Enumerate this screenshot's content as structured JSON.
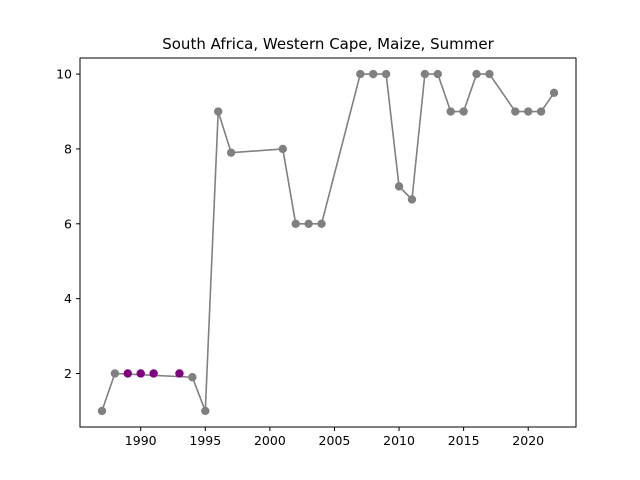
{
  "chart_data": {
    "type": "line",
    "title": "South Africa, Western Cape, Maize, Summer",
    "xlabel": "",
    "ylabel": "",
    "xlim": [
      1985.3,
      2023.7
    ],
    "ylim": [
      0.57,
      10.43
    ],
    "xticks": [
      "1990",
      "1995",
      "2000",
      "2005",
      "2010",
      "2015",
      "2020"
    ],
    "yticks": [
      "2",
      "4",
      "6",
      "8",
      "10"
    ],
    "grid": false,
    "legend": "none",
    "colors": {
      "line": "#808080",
      "marker": "#808080",
      "highlight": "#800080"
    },
    "series": [
      {
        "x": [
          1987,
          1988,
          1994,
          1995,
          1996,
          1997,
          2001,
          2002,
          2003,
          2004,
          2007,
          2008,
          2009,
          2010,
          2011,
          2012,
          2013,
          2014,
          2015,
          2016,
          2017,
          2019,
          2020,
          2021,
          2022
        ],
        "values": [
          1,
          2,
          1.9,
          1,
          9,
          7.9,
          8,
          6,
          6,
          6,
          10,
          10,
          10,
          7,
          6.65,
          10,
          10,
          9,
          9,
          10,
          10,
          9,
          9,
          9,
          9.5
        ]
      }
    ],
    "highlighted_points": {
      "x": [
        1989,
        1990,
        1991,
        1993
      ],
      "values": [
        2,
        2,
        2,
        2
      ]
    }
  }
}
